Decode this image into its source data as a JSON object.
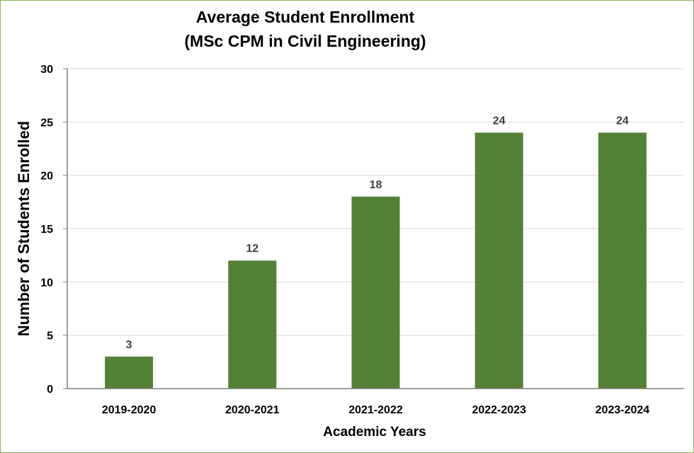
{
  "chart_data": {
    "type": "bar",
    "title_lines": [
      "Average Student Enrollment",
      "(MSc CPM in Civil Engineering)"
    ],
    "xlabel": "Academic Years",
    "ylabel": "Number of Students Enrolled",
    "categories": [
      "2019-2020",
      "2020-2021",
      "2021-2022",
      "2022-2023",
      "2023-2024"
    ],
    "values": [
      3,
      12,
      18,
      24,
      24
    ],
    "data_labels": [
      "3",
      "12",
      "18",
      "24",
      "24"
    ],
    "ylim": [
      0,
      30
    ],
    "yticks": [
      0,
      5,
      10,
      15,
      20,
      25,
      30
    ],
    "ytick_labels": [
      "0",
      "5",
      "10",
      "15",
      "20",
      "25",
      "30"
    ],
    "grid": true,
    "legend": "none",
    "colors": {
      "bar": "#538135",
      "grid": "#d9d9d9",
      "axis": "#7f7f7f",
      "border": "#8fb35a"
    }
  }
}
